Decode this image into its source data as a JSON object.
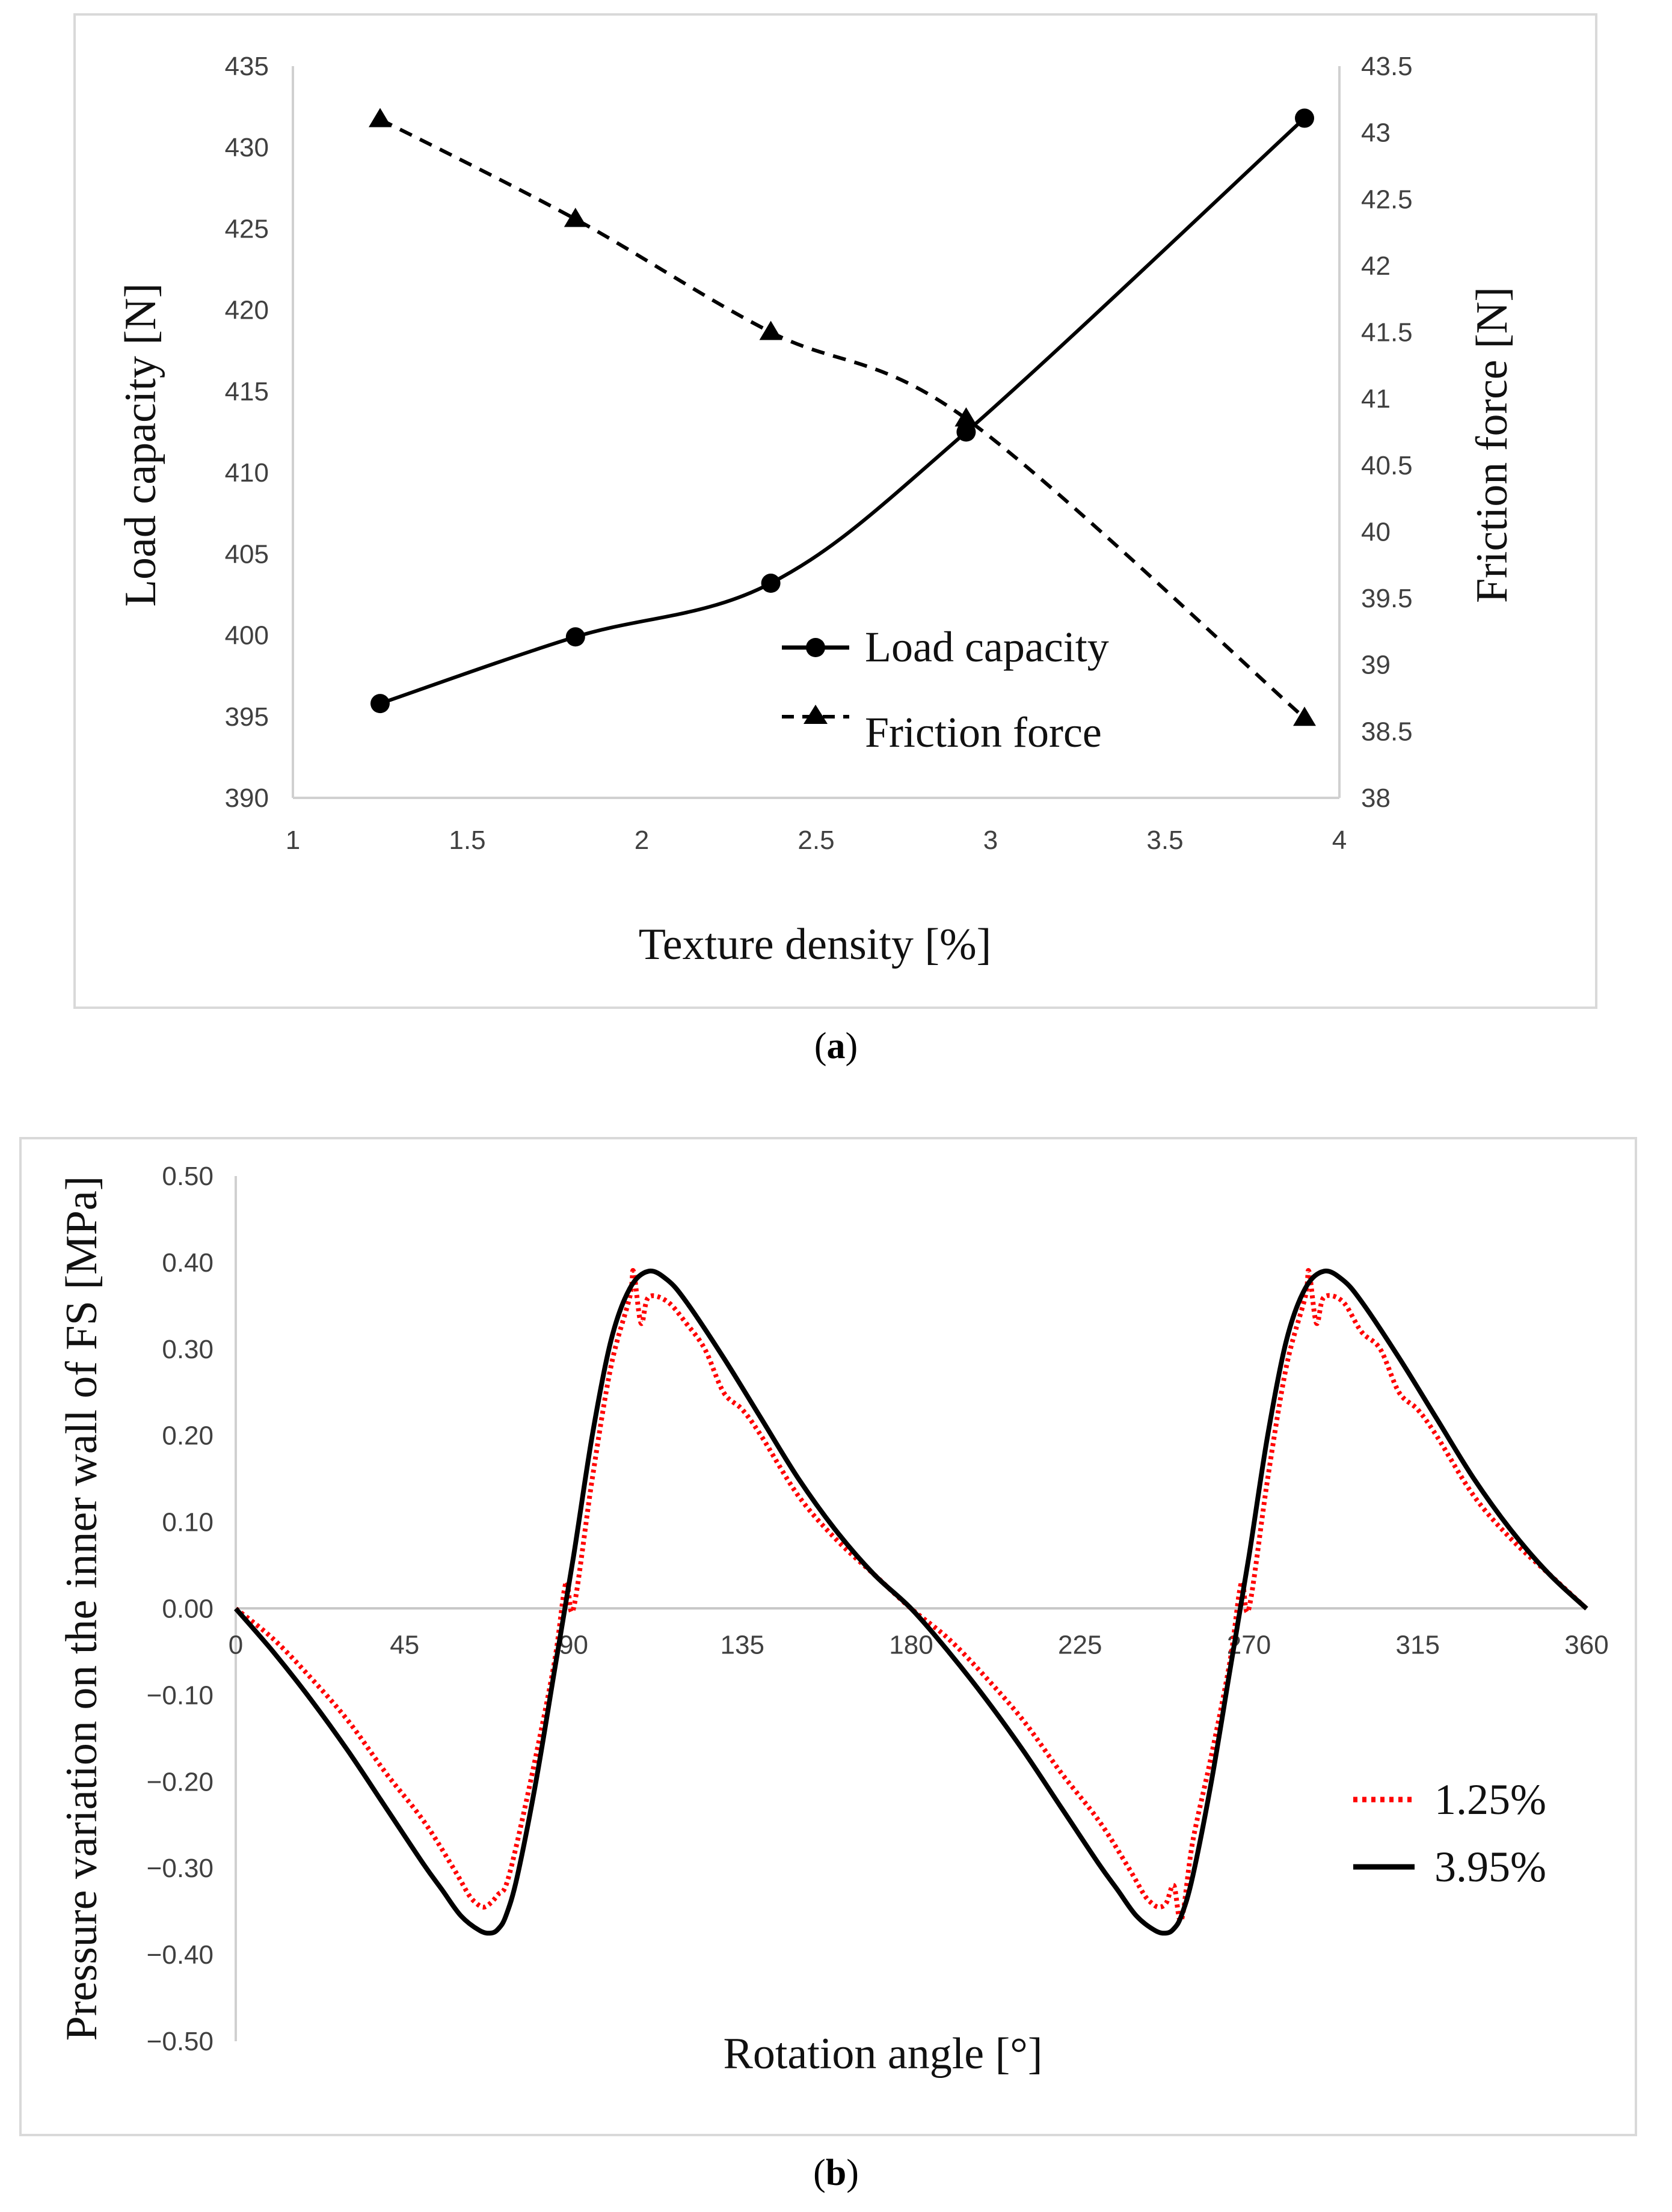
{
  "chart_data": [
    {
      "type": "line",
      "caption": "a",
      "xlabel": "Texture density [%]",
      "ylabel_left": "Load capacity [N]",
      "ylabel_right": "Friction force [N]",
      "xlim": [
        1,
        4
      ],
      "ylim_left": [
        390,
        435
      ],
      "ylim_right": [
        38,
        43.5
      ],
      "x_ticks": [
        "1",
        "1.5",
        "2",
        "2.5",
        "3",
        "3.5",
        "4"
      ],
      "y_left_ticks": [
        "390",
        "395",
        "400",
        "405",
        "410",
        "415",
        "420",
        "425",
        "430",
        "435"
      ],
      "y_right_ticks": [
        "38",
        "38.5",
        "39",
        "39.5",
        "40",
        "40.5",
        "41",
        "41.5",
        "42",
        "42.5",
        "43",
        "43.5"
      ],
      "legend_position": "bottom-center",
      "series": [
        {
          "name": "Load capacity",
          "axis": "left",
          "style": "solid",
          "marker": "circle",
          "x": [
            1.25,
            1.81,
            2.37,
            2.93,
            3.9
          ],
          "values": [
            395.8,
            399.9,
            403.2,
            412.5,
            431.8
          ]
        },
        {
          "name": "Friction force",
          "axis": "right",
          "style": "dashed",
          "marker": "triangle",
          "x": [
            1.25,
            1.81,
            2.37,
            2.93,
            3.9
          ],
          "values": [
            43.1,
            42.35,
            41.5,
            40.85,
            38.6
          ]
        }
      ]
    },
    {
      "type": "line",
      "caption": "b",
      "xlabel": "Rotation angle [°]",
      "ylabel": "Pressure variation on the inner wall of FS [MPa]",
      "xlim": [
        0,
        360
      ],
      "ylim": [
        -0.5,
        0.5
      ],
      "x_ticks": [
        "0",
        "45",
        "90",
        "135",
        "180",
        "225",
        "270",
        "315",
        "360"
      ],
      "y_ticks": [
        "0.50",
        "0.40",
        "0.30",
        "0.20",
        "0.10",
        "0.00",
        "−0.10",
        "−0.20",
        "−0.30",
        "−0.40",
        "−0.50"
      ],
      "legend_position": "right",
      "series": [
        {
          "name": "1.25%",
          "color": "#ff0000",
          "style": "dotted",
          "x": [
            0,
            10,
            20,
            30,
            40,
            50,
            58,
            62,
            64,
            66,
            68,
            70,
            72,
            75,
            80,
            85,
            88,
            90,
            95,
            100,
            105,
            106,
            108,
            110,
            115,
            120,
            125,
            130,
            135,
            140,
            150,
            160,
            170,
            180,
            190,
            200,
            210,
            220,
            230,
            238,
            242,
            244,
            246,
            248,
            250,
            252,
            255,
            260,
            265,
            268,
            270,
            275,
            280,
            285,
            286,
            288,
            290,
            295,
            300,
            305,
            310,
            315,
            320,
            330,
            340,
            350,
            360
          ],
          "values": [
            0,
            -0.035,
            -0.08,
            -0.13,
            -0.19,
            -0.245,
            -0.3,
            -0.33,
            -0.34,
            -0.345,
            -0.34,
            -0.33,
            -0.32,
            -0.27,
            -0.17,
            -0.06,
            0.03,
            0.0,
            0.15,
            0.28,
            0.36,
            0.39,
            0.33,
            0.36,
            0.355,
            0.33,
            0.3,
            0.25,
            0.23,
            0.2,
            0.13,
            0.08,
            0.04,
            0.0,
            -0.035,
            -0.08,
            -0.13,
            -0.19,
            -0.245,
            -0.3,
            -0.33,
            -0.34,
            -0.345,
            -0.34,
            -0.32,
            -0.36,
            -0.27,
            -0.17,
            -0.06,
            0.03,
            0.0,
            0.15,
            0.28,
            0.36,
            0.39,
            0.33,
            0.36,
            0.355,
            0.32,
            0.3,
            0.25,
            0.23,
            0.2,
            0.13,
            0.08,
            0.04,
            0.0
          ]
        },
        {
          "name": "3.95%",
          "color": "#000000",
          "style": "solid",
          "x": [
            0,
            10,
            20,
            30,
            40,
            50,
            55,
            60,
            65,
            68,
            70,
            72,
            75,
            80,
            85,
            90,
            95,
            100,
            105,
            110,
            115,
            120,
            130,
            140,
            150,
            160,
            170,
            180,
            190,
            200,
            210,
            220,
            230,
            235,
            240,
            245,
            248,
            250,
            252,
            255,
            260,
            265,
            270,
            275,
            280,
            285,
            290,
            295,
            300,
            310,
            320,
            330,
            340,
            350,
            360
          ],
          "values": [
            0,
            -0.05,
            -0.105,
            -0.165,
            -0.23,
            -0.295,
            -0.325,
            -0.355,
            -0.372,
            -0.375,
            -0.37,
            -0.355,
            -0.31,
            -0.2,
            -0.07,
            0.06,
            0.2,
            0.31,
            0.37,
            0.39,
            0.38,
            0.355,
            0.29,
            0.22,
            0.15,
            0.09,
            0.04,
            0.0,
            -0.05,
            -0.105,
            -0.165,
            -0.23,
            -0.295,
            -0.325,
            -0.355,
            -0.372,
            -0.375,
            -0.37,
            -0.355,
            -0.31,
            -0.2,
            -0.07,
            0.06,
            0.2,
            0.31,
            0.37,
            0.39,
            0.38,
            0.355,
            0.29,
            0.22,
            0.15,
            0.09,
            0.04,
            0.0
          ]
        }
      ]
    }
  ]
}
